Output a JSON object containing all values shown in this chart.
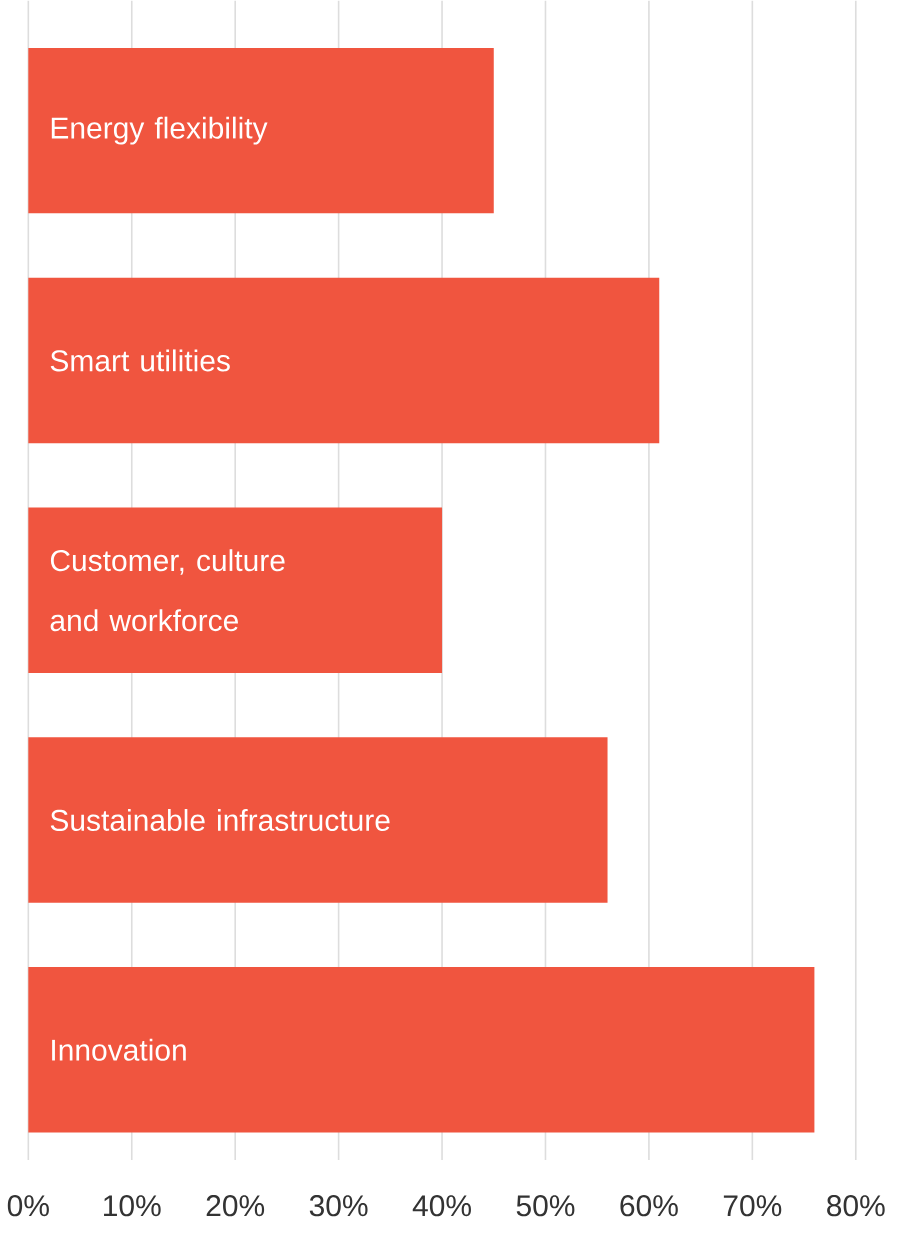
{
  "chart_data": {
    "type": "bar",
    "orientation": "horizontal",
    "categories": [
      "Energy flexibility",
      "Smart utilities",
      "Customer, culture and workforce",
      "Sustainable infrastructure",
      "Innovation"
    ],
    "values": [
      45,
      61,
      40,
      56,
      76
    ],
    "color": "#f0553f",
    "xlim": [
      0,
      80
    ],
    "xticks": [
      {
        "value": 0,
        "label": "0%"
      },
      {
        "value": 10,
        "label": "10%"
      },
      {
        "value": 20,
        "label": "20%"
      },
      {
        "value": 30,
        "label": "30%"
      },
      {
        "value": 40,
        "label": "40%"
      },
      {
        "value": 50,
        "label": "50%"
      },
      {
        "value": 60,
        "label": "60%"
      },
      {
        "value": 70,
        "label": "70%"
      },
      {
        "value": 80,
        "label": "80%"
      }
    ],
    "grid": "x"
  }
}
